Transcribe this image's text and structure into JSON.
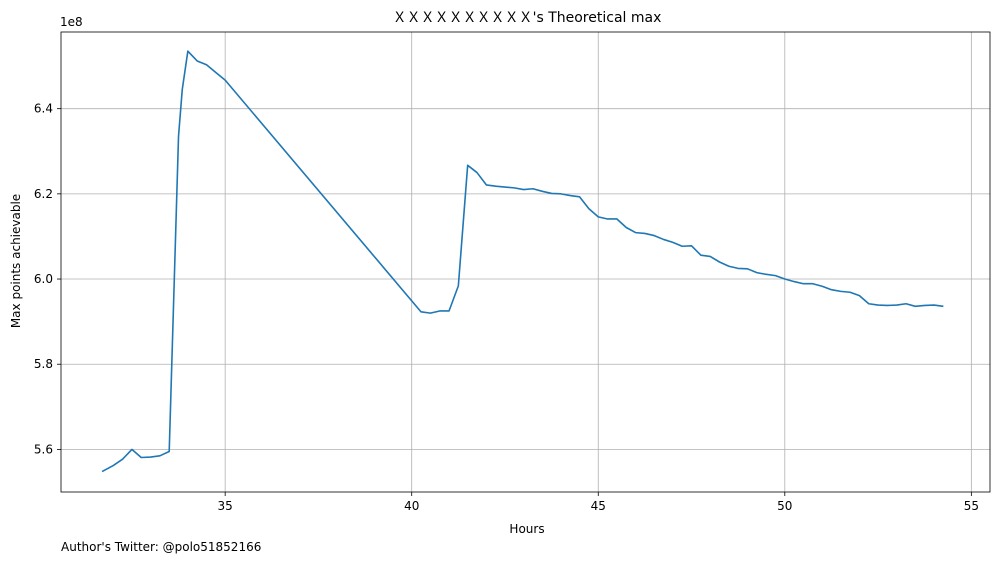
{
  "chart_data": {
    "type": "line",
    "title": "ＸＸＸＸＸＸＸＸＸＸ's Theoretical max",
    "xlabel": "Hours",
    "ylabel": "Max points achievable",
    "y_offset_label": "1e8",
    "xlim": [
      30.6,
      55.5
    ],
    "ylim": [
      5.5,
      6.58
    ],
    "x_ticks": [
      35,
      40,
      45,
      50,
      55
    ],
    "y_ticks": [
      5.6,
      5.8,
      6.0,
      6.2,
      6.4
    ],
    "x_tick_labels": [
      "35",
      "40",
      "45",
      "50",
      "55"
    ],
    "y_tick_labels": [
      "5.6",
      "5.8",
      "6.0",
      "6.2",
      "6.4"
    ],
    "grid": true,
    "line_color": "#1f77b4",
    "series": [
      {
        "x": [
          31.7,
          32.0,
          32.25,
          32.5,
          32.75,
          33.0,
          33.25,
          33.5,
          33.75,
          33.85,
          34.0,
          34.25,
          34.5,
          34.75,
          35.0,
          40.25,
          40.5,
          40.75,
          41.0,
          41.25,
          41.5,
          41.75,
          42.0,
          42.25,
          42.5,
          42.75,
          43.0,
          43.25,
          43.5,
          43.75,
          44.0,
          44.25,
          44.5,
          44.75,
          45.0,
          45.25,
          45.5,
          45.75,
          46.0,
          46.25,
          46.5,
          46.75,
          47.0,
          47.25,
          47.5,
          47.75,
          48.0,
          48.25,
          48.5,
          48.75,
          49.0,
          49.25,
          49.5,
          49.75,
          50.0,
          50.25,
          50.5,
          50.75,
          51.0,
          51.25,
          51.5,
          51.75,
          52.0,
          52.25,
          52.5,
          52.75,
          53.0,
          53.25,
          53.5,
          53.75,
          54.0,
          54.25
        ],
        "y": [
          5.548,
          5.562,
          5.577,
          5.6,
          5.581,
          5.582,
          5.585,
          5.595,
          6.335,
          6.445,
          6.535,
          6.512,
          6.503,
          6.485,
          6.467,
          5.923,
          5.92,
          5.925,
          5.925,
          5.984,
          6.267,
          6.25,
          6.221,
          6.218,
          6.216,
          6.214,
          6.21,
          6.212,
          6.206,
          6.201,
          6.2,
          6.196,
          6.193,
          6.165,
          6.146,
          6.141,
          6.141,
          6.121,
          6.109,
          6.107,
          6.102,
          6.093,
          6.086,
          6.077,
          6.078,
          6.056,
          6.053,
          6.04,
          6.03,
          6.025,
          6.024,
          6.015,
          6.011,
          6.008,
          6.0,
          5.994,
          5.989,
          5.989,
          5.983,
          5.975,
          5.971,
          5.969,
          5.961,
          5.942,
          5.939,
          5.938,
          5.939,
          5.942,
          5.936,
          5.938,
          5.939,
          5.936
        ]
      }
    ]
  },
  "footer": {
    "text": "Author's Twitter: @polo51852166"
  }
}
